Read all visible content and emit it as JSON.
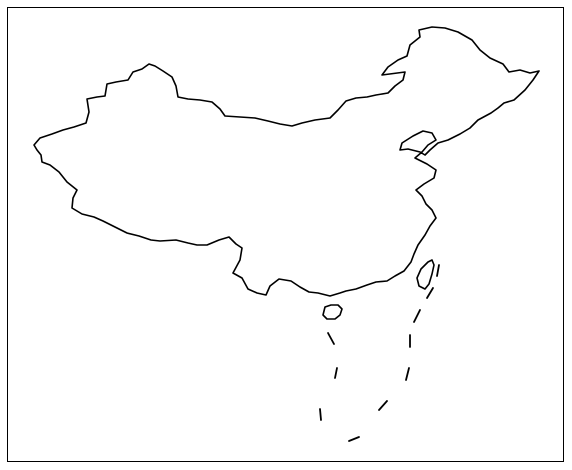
{
  "map": {
    "type": "outline-map",
    "region": "China",
    "projection": "plate-carree",
    "frame": true,
    "colors": {
      "background": "#ffffff",
      "outline": "#000000"
    },
    "features": [
      {
        "name": "mainland-outline",
        "style": "solid"
      },
      {
        "name": "taiwan-outline",
        "style": "solid"
      },
      {
        "name": "hainan-outline",
        "style": "solid"
      },
      {
        "name": "south-china-sea-dashed-line",
        "style": "dashed",
        "segments": 10
      }
    ]
  }
}
